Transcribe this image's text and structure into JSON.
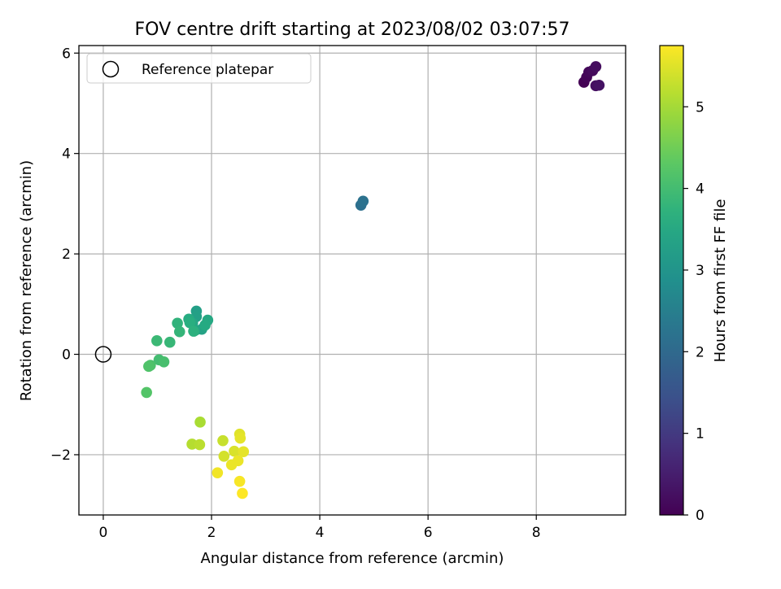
{
  "chart_data": {
    "type": "scatter",
    "title": "FOV centre drift starting at 2023/08/02 03:07:57",
    "xlabel": "Angular distance from reference (arcmin)",
    "ylabel": "Rotation from reference (arcmin)",
    "xlim": [
      -0.45,
      9.65
    ],
    "ylim": [
      -3.2,
      6.15
    ],
    "xticks": [
      0,
      2,
      4,
      6,
      8
    ],
    "xtick_labels": [
      "0",
      "2",
      "4",
      "6",
      "8"
    ],
    "yticks": [
      -2,
      0,
      2,
      4,
      6
    ],
    "ytick_labels": [
      "−2",
      "0",
      "2",
      "4",
      "6"
    ],
    "grid": true,
    "legend": {
      "placement": "top-left",
      "entries": [
        {
          "label": "Reference platepar",
          "marker": "open-circle"
        }
      ]
    },
    "reference_point": {
      "x": 0,
      "y": 0
    },
    "colorbar": {
      "label": "Hours from first FF file",
      "range": [
        0,
        5.75
      ],
      "ticks": [
        0,
        1,
        2,
        3,
        4,
        5
      ],
      "tick_labels": [
        "0",
        "1",
        "2",
        "3",
        "4",
        "5"
      ],
      "colormap": "viridis"
    },
    "points": [
      {
        "x": 8.88,
        "y": 5.42,
        "h": 0.0
      },
      {
        "x": 8.93,
        "y": 5.52,
        "h": 0.05
      },
      {
        "x": 8.97,
        "y": 5.62,
        "h": 0.1
      },
      {
        "x": 9.04,
        "y": 5.65,
        "h": 0.15
      },
      {
        "x": 9.1,
        "y": 5.73,
        "h": 0.2
      },
      {
        "x": 9.1,
        "y": 5.35,
        "h": 0.25
      },
      {
        "x": 9.16,
        "y": 5.36,
        "h": 0.3
      },
      {
        "x": 4.76,
        "y": 2.97,
        "h": 2.15
      },
      {
        "x": 4.8,
        "y": 3.05,
        "h": 2.2
      },
      {
        "x": 1.72,
        "y": 0.86,
        "h": 3.25
      },
      {
        "x": 1.72,
        "y": 0.75,
        "h": 3.3
      },
      {
        "x": 1.82,
        "y": 0.5,
        "h": 3.35
      },
      {
        "x": 1.7,
        "y": 0.48,
        "h": 3.4
      },
      {
        "x": 1.65,
        "y": 0.62,
        "h": 3.45
      },
      {
        "x": 1.93,
        "y": 0.68,
        "h": 3.5
      },
      {
        "x": 1.88,
        "y": 0.58,
        "h": 3.55
      },
      {
        "x": 1.58,
        "y": 0.7,
        "h": 3.6
      },
      {
        "x": 1.6,
        "y": 0.63,
        "h": 3.65
      },
      {
        "x": 1.67,
        "y": 0.46,
        "h": 3.7
      },
      {
        "x": 1.37,
        "y": 0.62,
        "h": 3.75
      },
      {
        "x": 1.41,
        "y": 0.45,
        "h": 3.8
      },
      {
        "x": 1.23,
        "y": 0.24,
        "h": 3.85
      },
      {
        "x": 0.99,
        "y": 0.27,
        "h": 3.9
      },
      {
        "x": 1.03,
        "y": -0.11,
        "h": 4.0
      },
      {
        "x": 1.12,
        "y": -0.15,
        "h": 4.05
      },
      {
        "x": 0.87,
        "y": -0.22,
        "h": 4.1
      },
      {
        "x": 0.84,
        "y": -0.24,
        "h": 4.15
      },
      {
        "x": 0.8,
        "y": -0.76,
        "h": 4.2
      },
      {
        "x": 1.79,
        "y": -1.35,
        "h": 5.05
      },
      {
        "x": 1.64,
        "y": -1.79,
        "h": 5.15
      },
      {
        "x": 1.78,
        "y": -1.8,
        "h": 5.2
      },
      {
        "x": 2.21,
        "y": -1.72,
        "h": 5.3
      },
      {
        "x": 2.23,
        "y": -2.03,
        "h": 5.4
      },
      {
        "x": 2.42,
        "y": -1.93,
        "h": 5.45
      },
      {
        "x": 2.52,
        "y": -1.59,
        "h": 5.5
      },
      {
        "x": 2.53,
        "y": -1.67,
        "h": 5.55
      },
      {
        "x": 2.59,
        "y": -1.94,
        "h": 5.55
      },
      {
        "x": 2.49,
        "y": -2.12,
        "h": 5.6
      },
      {
        "x": 2.37,
        "y": -2.2,
        "h": 5.6
      },
      {
        "x": 2.11,
        "y": -2.36,
        "h": 5.65
      },
      {
        "x": 2.52,
        "y": -2.53,
        "h": 5.7
      },
      {
        "x": 2.57,
        "y": -2.77,
        "h": 5.75
      }
    ]
  }
}
